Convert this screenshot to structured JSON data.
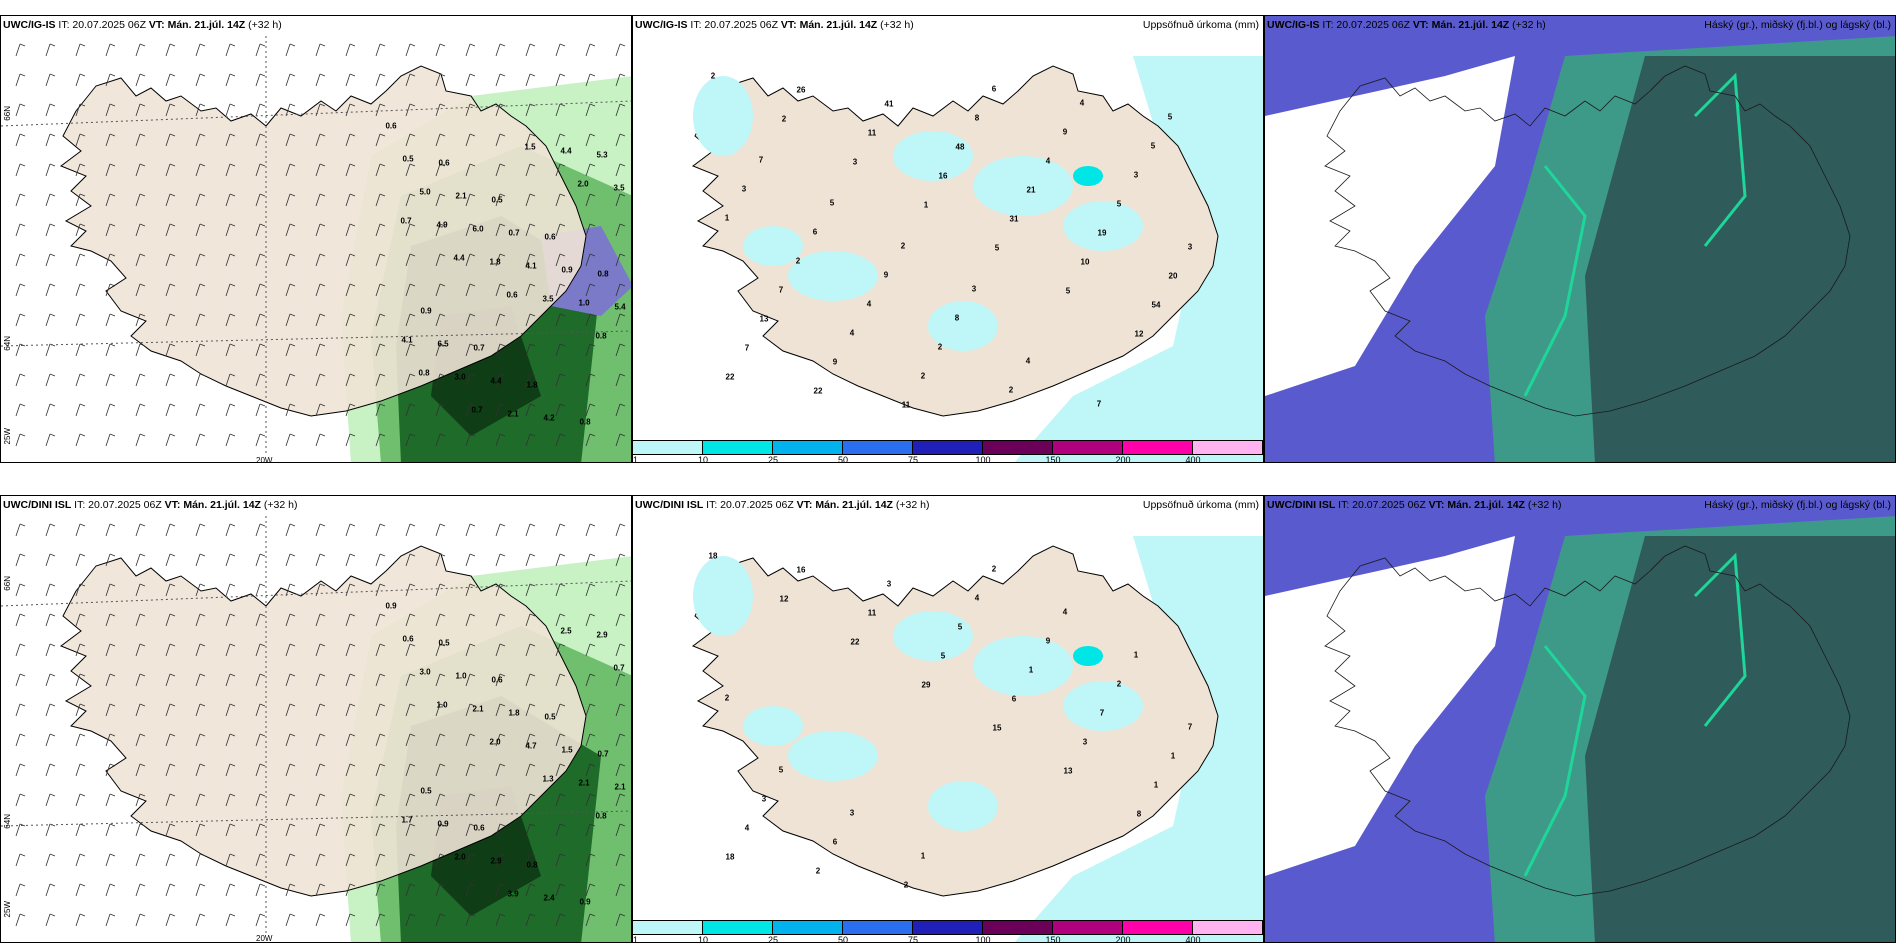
{
  "colors": {
    "land": "#efe3d6",
    "sea": "#ffffff",
    "precip_light": "#c8f2c4",
    "precip_mid": "#6fbf6f",
    "precip_heavy": "#1f6b2a",
    "precip_vheavy": "#0f3d16",
    "precip_high": "#7a7ac9",
    "accum_cyan": "#bff6f8",
    "cloud_high": "#5a5acf",
    "cloud_mid": "#3e9a88",
    "cloud_low": "#2f5b5a",
    "cloud_green": "#1fd69a"
  },
  "rows": [
    {
      "model": "UWC/IG-IS",
      "time_label": "IT: 20.07.2025 06Z",
      "vt": "VT: Mán. 21.júl. 14Z",
      "lead": "(+32 h)"
    },
    {
      "model": "UWC/DINI ISL",
      "time_label": "IT: 20.07.2025 06Z",
      "vt": "VT: Mán. 21.júl. 14Z",
      "lead": "(+32 h)"
    }
  ],
  "titles": {
    "precip": "Uppsöfnuð úrkoma (mm)",
    "clouds": "Háský (gr.), miðský (fj.bl.) og lágský (bl.)"
  },
  "axis": {
    "lat_66": "66N",
    "lat_64": "64N",
    "lon_20": "20W",
    "lon_25": "25W"
  },
  "colorbar": {
    "ticks": [
      "1",
      "10",
      "25",
      "50",
      "75",
      "100",
      "150",
      "200",
      "400"
    ],
    "colors": [
      "#bff6f8",
      "#00e5e5",
      "#00b2ee",
      "#2a6fef",
      "#2020b8",
      "#6a0058",
      "#b0007e",
      "#ff00aa",
      "#ffb3f0"
    ]
  },
  "row1_wind_labels": [
    "0.6",
    "0.6",
    "0.5",
    "0.6",
    "0.8",
    "0.9",
    "0.7",
    "1.8",
    "0.8",
    "0.5",
    "2.1",
    "0.7",
    "0.9",
    "5.4",
    "6.5",
    "4.4",
    "4.2",
    "5.3",
    "5.0",
    "6.0",
    "4.1",
    "1.0",
    "4.1",
    "3.0",
    "2.1",
    "4.4",
    "3.5",
    "4.9",
    "1.8",
    "3.5",
    "0.8",
    "0.8",
    "0.7",
    "1.5",
    "2.0",
    "0.7",
    "4.4",
    "0.6"
  ],
  "row1_precip_labels": [
    "2",
    "2",
    "3",
    "1",
    "5",
    "5",
    "12",
    "22",
    "26",
    "11",
    "16",
    "31",
    "10",
    "54",
    "7",
    "22",
    "41",
    "48",
    "21",
    "19",
    "20",
    "13",
    "9",
    "11",
    "8",
    "4",
    "5",
    "3",
    "7",
    "4",
    "2",
    "6",
    "9",
    "3",
    "1",
    "2",
    "4",
    "2",
    "2",
    "4",
    "5",
    "3",
    "6",
    "9",
    "8",
    "4",
    "7",
    "5",
    "7",
    "5",
    "2",
    "3"
  ],
  "row2_wind_labels": [
    "0.9",
    "0.5",
    "0.6",
    "0.5",
    "0.7",
    "0.5",
    "0.6",
    "0.8",
    "0.9",
    "0.6",
    "1.0",
    "1.8",
    "1.5",
    "2.1",
    "0.9",
    "2.9",
    "2.4",
    "2.9",
    "3.0",
    "2.1",
    "4.7",
    "2.1",
    "1.7",
    "2.0",
    "3.9",
    "2.5",
    "0.7",
    "1.0",
    "2.0",
    "1.3",
    "0.8"
  ],
  "row2_precip_labels": [
    "18",
    "12",
    "22",
    "29",
    "15",
    "13",
    "8",
    "18",
    "16",
    "11",
    "5",
    "6",
    "3",
    "1",
    "4",
    "2",
    "3",
    "5",
    "1",
    "7",
    "1",
    "3",
    "6",
    "2",
    "4",
    "9",
    "2",
    "7",
    "5",
    "3",
    "1",
    "2",
    "4",
    "1",
    "2"
  ]
}
